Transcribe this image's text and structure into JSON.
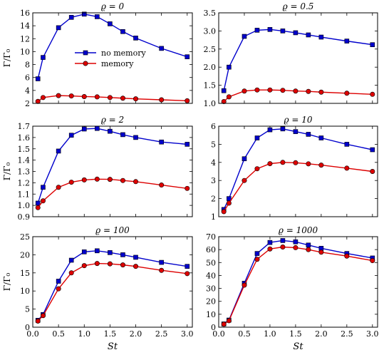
{
  "chart_data": [
    {
      "type": "line",
      "title": "ϱ = 0",
      "xlabel": "",
      "ylabel": "Γ/Γ₀",
      "xlim": [
        0,
        3.1
      ],
      "ylim": [
        2,
        16
      ],
      "xticks": [
        0.0,
        0.5,
        1.0,
        1.5,
        2.0,
        2.5,
        3.0
      ],
      "xtick_labels_visible": false,
      "yticks": [
        2,
        4,
        6,
        8,
        10,
        12,
        14,
        16
      ],
      "ytick_labels": [
        "2",
        "4",
        "6",
        "8",
        "10",
        "12",
        "14",
        "16"
      ],
      "legend": {
        "placement": "center",
        "entries": [
          "no memory",
          "memory"
        ]
      },
      "x": [
        0.1,
        0.2,
        0.5,
        0.75,
        1.0,
        1.25,
        1.5,
        1.75,
        2.0,
        2.5,
        3.0
      ],
      "series": [
        {
          "name": "no memory",
          "color": "#0000cc",
          "marker": "square",
          "values": [
            5.8,
            9.1,
            13.7,
            15.3,
            15.8,
            15.4,
            14.3,
            13.1,
            12.1,
            10.5,
            9.2
          ]
        },
        {
          "name": "memory",
          "color": "#dd0000",
          "marker": "circle",
          "values": [
            2.3,
            2.9,
            3.2,
            3.15,
            3.05,
            3.0,
            2.9,
            2.8,
            2.7,
            2.55,
            2.4
          ]
        }
      ]
    },
    {
      "type": "line",
      "title": "ϱ = 0.5",
      "xlabel": "",
      "ylabel": "",
      "xlim": [
        0,
        3.1
      ],
      "ylim": [
        1.0,
        3.5
      ],
      "xticks": [
        0.0,
        0.5,
        1.0,
        1.5,
        2.0,
        2.5,
        3.0
      ],
      "xtick_labels_visible": false,
      "yticks": [
        1.0,
        1.5,
        2.0,
        2.5,
        3.0,
        3.5
      ],
      "ytick_labels": [
        "1.0",
        "1.5",
        "2.0",
        "2.5",
        "3.0",
        "3.5"
      ],
      "x": [
        0.1,
        0.2,
        0.5,
        0.75,
        1.0,
        1.25,
        1.5,
        1.75,
        2.0,
        2.5,
        3.0
      ],
      "series": [
        {
          "name": "no memory",
          "color": "#0000cc",
          "marker": "square",
          "values": [
            1.35,
            2.0,
            2.85,
            3.02,
            3.04,
            3.0,
            2.95,
            2.89,
            2.83,
            2.72,
            2.62
          ]
        },
        {
          "name": "memory",
          "color": "#dd0000",
          "marker": "circle",
          "values": [
            1.05,
            1.18,
            1.34,
            1.37,
            1.37,
            1.36,
            1.34,
            1.33,
            1.31,
            1.28,
            1.25
          ]
        }
      ]
    },
    {
      "type": "line",
      "title": "ϱ = 2",
      "xlabel": "",
      "ylabel": "Γ/Γ₀",
      "xlim": [
        0,
        3.1
      ],
      "ylim": [
        0.9,
        1.7
      ],
      "xticks": [
        0.0,
        0.5,
        1.0,
        1.5,
        2.0,
        2.5,
        3.0
      ],
      "xtick_labels_visible": false,
      "yticks": [
        0.9,
        1.0,
        1.1,
        1.2,
        1.3,
        1.4,
        1.5,
        1.6,
        1.7
      ],
      "ytick_labels": [
        "0.9",
        "1.0",
        "1.1",
        "1.2",
        "1.3",
        "1.4",
        "1.5",
        "1.6",
        "1.7"
      ],
      "x": [
        0.1,
        0.2,
        0.5,
        0.75,
        1.0,
        1.25,
        1.5,
        1.75,
        2.0,
        2.5,
        3.0
      ],
      "series": [
        {
          "name": "no memory",
          "color": "#0000cc",
          "marker": "square",
          "values": [
            1.02,
            1.16,
            1.48,
            1.62,
            1.675,
            1.68,
            1.655,
            1.625,
            1.6,
            1.56,
            1.54
          ]
        },
        {
          "name": "memory",
          "color": "#dd0000",
          "marker": "circle",
          "values": [
            0.98,
            1.04,
            1.16,
            1.205,
            1.225,
            1.232,
            1.23,
            1.22,
            1.21,
            1.18,
            1.15
          ]
        }
      ]
    },
    {
      "type": "line",
      "title": "ϱ = 10",
      "xlabel": "",
      "ylabel": "",
      "xlim": [
        0,
        3.1
      ],
      "ylim": [
        1,
        6
      ],
      "xticks": [
        0.0,
        0.5,
        1.0,
        1.5,
        2.0,
        2.5,
        3.0
      ],
      "xtick_labels_visible": false,
      "yticks": [
        1,
        2,
        3,
        4,
        5,
        6
      ],
      "ytick_labels": [
        "1",
        "2",
        "3",
        "4",
        "5",
        "6"
      ],
      "x": [
        0.1,
        0.2,
        0.5,
        0.75,
        1.0,
        1.25,
        1.5,
        1.75,
        2.0,
        2.5,
        3.0
      ],
      "series": [
        {
          "name": "no memory",
          "color": "#0000cc",
          "marker": "square",
          "values": [
            1.4,
            2.0,
            4.2,
            5.35,
            5.8,
            5.85,
            5.7,
            5.55,
            5.35,
            5.0,
            4.7
          ]
        },
        {
          "name": "memory",
          "color": "#dd0000",
          "marker": "circle",
          "values": [
            1.28,
            1.75,
            3.0,
            3.65,
            3.93,
            4.0,
            3.98,
            3.92,
            3.85,
            3.68,
            3.5
          ]
        }
      ]
    },
    {
      "type": "line",
      "title": "ϱ = 100",
      "xlabel": "St",
      "ylabel": "Γ/Γ₀",
      "xlim": [
        0,
        3.1
      ],
      "ylim": [
        0,
        25
      ],
      "xticks": [
        0.0,
        0.5,
        1.0,
        1.5,
        2.0,
        2.5,
        3.0
      ],
      "xtick_labels": [
        "0.0",
        "0.5",
        "1.0",
        "1.5",
        "2.0",
        "2.5",
        "3.0"
      ],
      "yticks": [
        0,
        5,
        10,
        15,
        20,
        25
      ],
      "ytick_labels": [
        "0",
        "5",
        "10",
        "15",
        "20",
        "25"
      ],
      "x": [
        0.1,
        0.2,
        0.5,
        0.75,
        1.0,
        1.25,
        1.5,
        1.75,
        2.0,
        2.5,
        3.0
      ],
      "series": [
        {
          "name": "no memory",
          "color": "#0000cc",
          "marker": "square",
          "values": [
            1.9,
            3.5,
            12.7,
            18.5,
            20.8,
            21.1,
            20.6,
            20.0,
            19.3,
            17.9,
            16.8
          ]
        },
        {
          "name": "memory",
          "color": "#dd0000",
          "marker": "circle",
          "values": [
            1.7,
            3.2,
            10.6,
            15.0,
            17.0,
            17.6,
            17.5,
            17.2,
            16.8,
            15.7,
            14.8
          ]
        }
      ]
    },
    {
      "type": "line",
      "title": "ϱ = 1000",
      "xlabel": "St",
      "ylabel": "",
      "xlim": [
        0,
        3.1
      ],
      "ylim": [
        0,
        70
      ],
      "xticks": [
        0.0,
        0.5,
        1.0,
        1.5,
        2.0,
        2.5,
        3.0
      ],
      "xtick_labels": [
        "0.0",
        "0.5",
        "1.0",
        "1.5",
        "2.0",
        "2.5",
        "3.0"
      ],
      "yticks": [
        0,
        10,
        20,
        30,
        40,
        50,
        60,
        70
      ],
      "ytick_labels": [
        "0",
        "10",
        "20",
        "30",
        "40",
        "50",
        "60",
        "70"
      ],
      "x": [
        0.1,
        0.2,
        0.5,
        0.75,
        1.0,
        1.25,
        1.5,
        1.75,
        2.0,
        2.5,
        3.0
      ],
      "series": [
        {
          "name": "no memory",
          "color": "#0000cc",
          "marker": "square",
          "values": [
            2.5,
            5.5,
            34.0,
            57.0,
            65.5,
            67.0,
            66.0,
            63.5,
            61.0,
            57.0,
            53.5
          ]
        },
        {
          "name": "memory",
          "color": "#dd0000",
          "marker": "circle",
          "values": [
            2.3,
            5.0,
            32.5,
            52.5,
            60.5,
            62.0,
            61.5,
            60.0,
            58.0,
            55.0,
            51.5
          ]
        }
      ]
    }
  ]
}
